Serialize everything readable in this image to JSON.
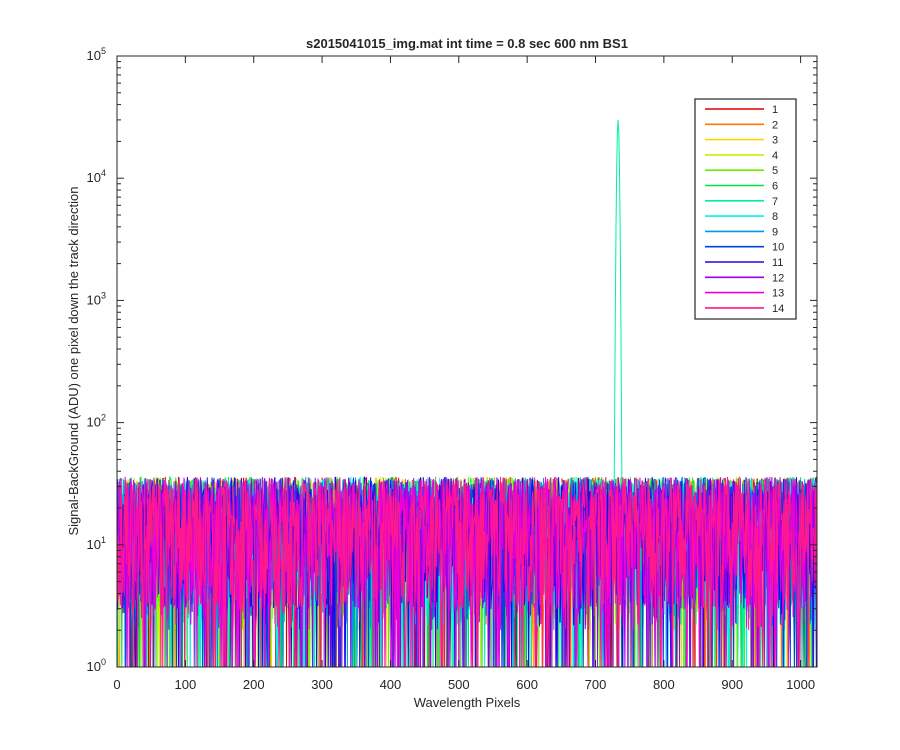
{
  "chart_data": {
    "type": "line",
    "title": "s2015041015_img.mat int time = 0.8 sec  600 nm BS1",
    "xlabel": "Wavelength Pixels",
    "ylabel": "Signal-BackGround (ADU) one pixel down the track direction",
    "xlim": [
      0,
      1024
    ],
    "ylim": [
      1,
      100000
    ],
    "yscale": "log",
    "x_ticks": [
      "0",
      "100",
      "200",
      "300",
      "400",
      "500",
      "600",
      "700",
      "800",
      "900",
      "1000"
    ],
    "y_ticks": [
      {
        "base": "10",
        "exp": "0"
      },
      {
        "base": "10",
        "exp": "1"
      },
      {
        "base": "10",
        "exp": "2"
      },
      {
        "base": "10",
        "exp": "3"
      },
      {
        "base": "10",
        "exp": "4"
      },
      {
        "base": "10",
        "exp": "5"
      }
    ],
    "legend_position": "top-right",
    "noise_floor_range": [
      1,
      45
    ],
    "peak": {
      "x": 733,
      "y": 30000,
      "series": "7"
    },
    "series": [
      {
        "name": "1",
        "color": "#e00000"
      },
      {
        "name": "2",
        "color": "#ff7a00"
      },
      {
        "name": "3",
        "color": "#ffd500"
      },
      {
        "name": "4",
        "color": "#c4f000"
      },
      {
        "name": "5",
        "color": "#66ee00"
      },
      {
        "name": "6",
        "color": "#00e04a"
      },
      {
        "name": "7",
        "color": "#00f0a0"
      },
      {
        "name": "8",
        "color": "#00f2f2"
      },
      {
        "name": "9",
        "color": "#0098e6"
      },
      {
        "name": "10",
        "color": "#0044dd"
      },
      {
        "name": "11",
        "color": "#2a00e6"
      },
      {
        "name": "12",
        "color": "#9a00e6"
      },
      {
        "name": "13",
        "color": "#ee00d8"
      },
      {
        "name": "14",
        "color": "#ff1a8c"
      }
    ]
  }
}
